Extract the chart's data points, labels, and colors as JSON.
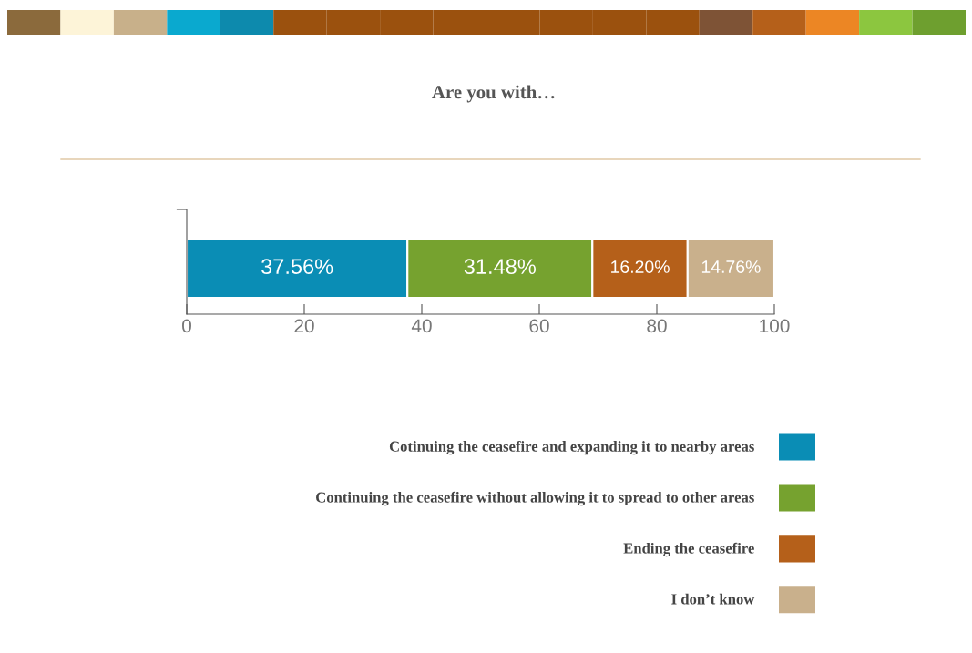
{
  "chart_data": {
    "type": "bar",
    "title": "Are you with…",
    "orientation": "horizontal",
    "stacked": true,
    "categories": [
      null
    ],
    "series": [
      {
        "name": "Cotinuing the ceasefire and expanding it to nearby areas",
        "color": "#0a8db5",
        "values": [
          37.56
        ],
        "value_labels": [
          "37.56%"
        ]
      },
      {
        "name": "Continuing the ceasefire without allowing it to spread to other areas",
        "color": "#76a22f",
        "values": [
          31.48
        ],
        "value_labels": [
          "31.48%"
        ]
      },
      {
        "name": "Ending the ceasefire",
        "color": "#b5601a",
        "values": [
          16.2
        ],
        "value_labels": [
          "16.20%"
        ]
      },
      {
        "name": "I don’t know",
        "color": "#c9b08c",
        "values": [
          14.76
        ],
        "value_labels": [
          "14.76%"
        ]
      }
    ],
    "xlim": [
      0,
      100
    ],
    "xticks": [
      0,
      20,
      40,
      60,
      80,
      100
    ],
    "tick_labels": "x",
    "legend": "bottom right",
    "grid": false
  }
}
